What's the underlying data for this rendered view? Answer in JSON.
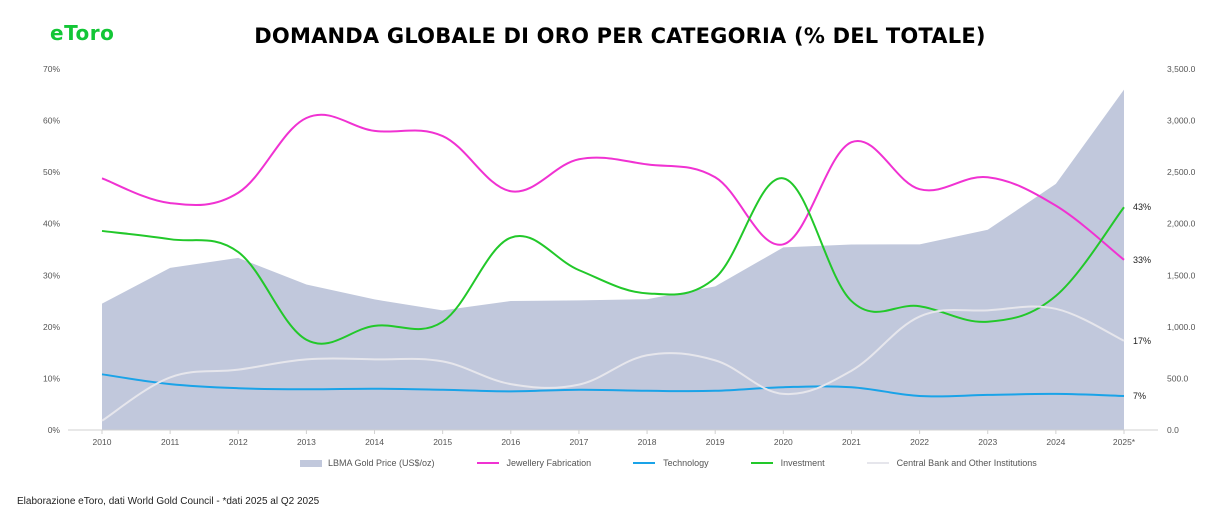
{
  "logo": {
    "text": "eToro",
    "color": "#13c636"
  },
  "title": "DOMANDA GLOBALE DI ORO PER CATEGORIA (% DEL TOTALE)",
  "source_note": "Elaborazione eToro, dati World Gold Council - *dati 2025 al Q2 2025",
  "chart_data": {
    "type": "line",
    "categories": [
      "2010",
      "2011",
      "2012",
      "2013",
      "2014",
      "2015",
      "2016",
      "2017",
      "2018",
      "2019",
      "2020",
      "2021",
      "2022",
      "2023",
      "2024",
      "2025*"
    ],
    "left_axis": {
      "ticks": [
        "0%",
        "10%",
        "20%",
        "30%",
        "40%",
        "50%",
        "60%",
        "70%"
      ],
      "ylim": [
        0,
        70
      ]
    },
    "right_axis": {
      "ticks": [
        "0.0",
        "500.0",
        "1,000.0",
        "1,500.0",
        "2,000.0",
        "2,500.0",
        "3,000.0",
        "3,500.0"
      ],
      "ylim": [
        0,
        3500
      ]
    },
    "grid": false,
    "legend_position": "bottom",
    "series": [
      {
        "name": "LBMA Gold Price (US$/oz)",
        "type": "area",
        "axis": "right",
        "color": "#c1c8dc",
        "values": [
          1225,
          1572,
          1669,
          1411,
          1266,
          1160,
          1251,
          1257,
          1268,
          1393,
          1770,
          1799,
          1800,
          1941,
          2386,
          3300
        ]
      },
      {
        "name": "Jewellery Fabrication",
        "type": "line",
        "axis": "left",
        "color": "#f032d2",
        "values": [
          48.8,
          44.0,
          46.0,
          60.5,
          58.0,
          57.0,
          46.3,
          52.5,
          51.5,
          49.0,
          36.0,
          55.8,
          46.7,
          49.0,
          43.5,
          33.0
        ],
        "end_label": "33%"
      },
      {
        "name": "Technology",
        "type": "line",
        "axis": "left",
        "color": "#1aa3e8",
        "values": [
          10.8,
          8.9,
          8.1,
          7.9,
          8.0,
          7.8,
          7.5,
          7.8,
          7.6,
          7.6,
          8.3,
          8.3,
          6.6,
          6.8,
          7.0,
          6.6
        ],
        "end_label": "7%"
      },
      {
        "name": "Investment",
        "type": "line",
        "axis": "left",
        "color": "#22c82a",
        "values": [
          38.6,
          37.0,
          34.5,
          17.5,
          20.2,
          21.0,
          37.3,
          31.0,
          26.5,
          29.5,
          48.8,
          25.0,
          24.0,
          21.0,
          26.0,
          43.2
        ],
        "end_label": "43%"
      },
      {
        "name": "Central Bank and Other Institutions",
        "type": "line",
        "axis": "left",
        "color": "#e6e6ec",
        "values": [
          1.8,
          10.2,
          11.7,
          13.7,
          13.7,
          13.3,
          8.9,
          8.8,
          14.5,
          13.5,
          7.0,
          11.5,
          22.0,
          23.2,
          23.5,
          17.3
        ],
        "end_label": "17%"
      }
    ]
  }
}
